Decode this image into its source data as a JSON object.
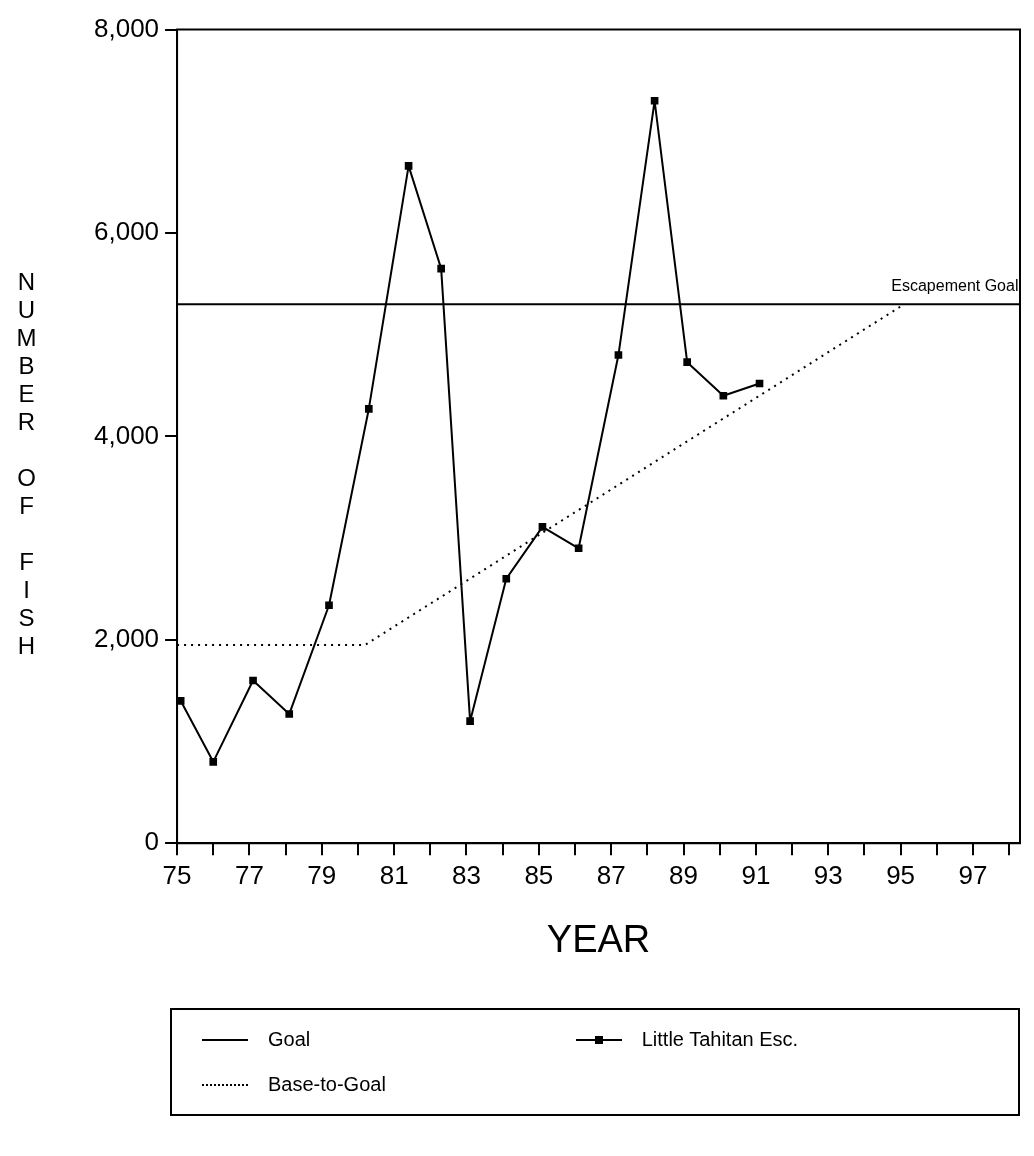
{
  "chart_data": {
    "type": "line",
    "xlabel": "YEAR",
    "ylabel": "NUMBER OF FISH",
    "xlim": [
      75,
      98.3
    ],
    "ylim": [
      0,
      8000
    ],
    "xticks": [
      75,
      {
        "value": 76,
        "label": null
      },
      77,
      {
        "value": 78,
        "label": null
      },
      79,
      {
        "value": 80,
        "label": null
      },
      81,
      {
        "value": 82,
        "label": null
      },
      83,
      {
        "value": 84,
        "label": null
      },
      85,
      {
        "value": 86,
        "label": null
      },
      87,
      {
        "value": 88,
        "label": null
      },
      89,
      {
        "value": 90,
        "label": null
      },
      91,
      {
        "value": 92,
        "label": null
      },
      93,
      {
        "value": 94,
        "label": null
      },
      95,
      {
        "value": 96,
        "label": null
      },
      97,
      {
        "value": 98,
        "label": null
      }
    ],
    "yticks": [
      0,
      {
        "value": 2000,
        "label": "2,000"
      },
      {
        "value": 4000,
        "label": "4,000"
      },
      {
        "value": 6000,
        "label": "6,000"
      },
      {
        "value": 8000,
        "label": "8,000"
      }
    ],
    "grid": false,
    "legend": "bottom",
    "annotations": [
      {
        "text": "Escapement Goal",
        "x": 96.5,
        "y": 5300
      }
    ],
    "series": [
      {
        "name": "Goal",
        "color": "#000000",
        "line_style": "solid",
        "marker": "none",
        "x": [
          75,
          98.3
        ],
        "values": [
          5300,
          5300
        ]
      },
      {
        "name": "Base-to-Goal",
        "color": "#000000",
        "line_style": "dotted",
        "marker": "none",
        "x": [
          75,
          80.2,
          95.1
        ],
        "values": [
          1950,
          1950,
          5300
        ]
      },
      {
        "name": "Little Tahitan Esc.",
        "color": "#000000",
        "line_style": "solid",
        "marker": "square",
        "x": [
          75.1,
          76.0,
          77.1,
          78.1,
          79.2,
          80.3,
          81.4,
          82.3,
          83.1,
          84.1,
          85.1,
          86.1,
          87.2,
          88.2,
          89.1,
          90.1,
          91.1
        ],
        "values": [
          1400,
          800,
          1600,
          1270,
          2340,
          4270,
          6660,
          5650,
          1200,
          2600,
          3110,
          2900,
          4800,
          7300,
          4730,
          4400,
          4520
        ]
      }
    ]
  }
}
